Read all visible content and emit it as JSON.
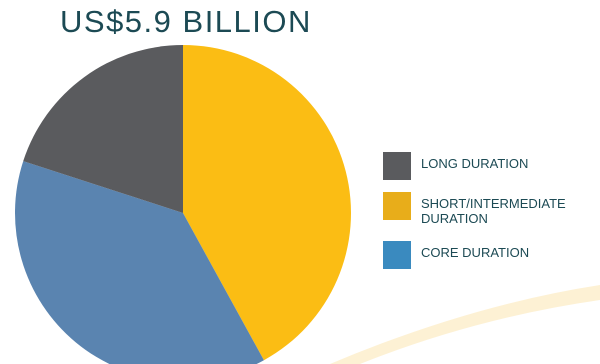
{
  "chart_data": {
    "type": "pie",
    "title": "US$5.9 BILLION",
    "slices": [
      {
        "label": "SHORT/INTERMEDIATE DURATION",
        "value": 42,
        "color": "#fbbd14"
      },
      {
        "label": "CORE DURATION",
        "value": 38,
        "color": "#5a84b0"
      },
      {
        "label": "LONG DURATION",
        "value": 20,
        "color": "#5a5b5e"
      }
    ],
    "legend": {
      "placement": "right",
      "entries": [
        {
          "label": "LONG DURATION",
          "color": "#5a5b5e"
        },
        {
          "label": "SHORT/INTERMEDIATE DURATION",
          "color": "#e8ad1a"
        },
        {
          "label": "CORE DURATION",
          "color": "#3a8abf"
        }
      ]
    }
  }
}
